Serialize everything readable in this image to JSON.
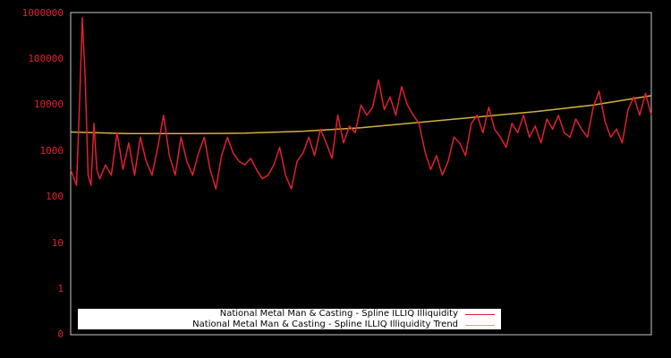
{
  "chart_data": {
    "type": "line",
    "title": "",
    "xlabel": "",
    "ylabel": "",
    "yscale": "log",
    "ylim": [
      0,
      1000000
    ],
    "y_ticks": [
      "1000000",
      "100000",
      "10000",
      "1000",
      "100",
      "10",
      "1",
      "0"
    ],
    "grid": false,
    "legend_position": "lower center",
    "colors": {
      "series": "#e02030",
      "trend": "#d4b040",
      "axis_labels": "#e02030",
      "background": "#000000",
      "frame": "#c8c8c8"
    },
    "series": [
      {
        "name": "National Metal Man & Casting - Spline ILLIQ Illiquidity",
        "color": "#e02030",
        "x_fraction": [
          0.0,
          0.01,
          0.015,
          0.02,
          0.025,
          0.03,
          0.035,
          0.04,
          0.045,
          0.05,
          0.06,
          0.07,
          0.08,
          0.09,
          0.1,
          0.11,
          0.12,
          0.13,
          0.14,
          0.15,
          0.16,
          0.17,
          0.18,
          0.19,
          0.2,
          0.21,
          0.22,
          0.23,
          0.24,
          0.25,
          0.26,
          0.27,
          0.28,
          0.29,
          0.3,
          0.31,
          0.32,
          0.33,
          0.34,
          0.35,
          0.36,
          0.37,
          0.38,
          0.39,
          0.4,
          0.41,
          0.42,
          0.43,
          0.44,
          0.45,
          0.46,
          0.47,
          0.48,
          0.49,
          0.5,
          0.51,
          0.52,
          0.53,
          0.54,
          0.55,
          0.56,
          0.57,
          0.58,
          0.59,
          0.6,
          0.61,
          0.62,
          0.63,
          0.64,
          0.65,
          0.66,
          0.67,
          0.68,
          0.69,
          0.7,
          0.71,
          0.72,
          0.73,
          0.74,
          0.75,
          0.76,
          0.77,
          0.78,
          0.79,
          0.8,
          0.81,
          0.82,
          0.83,
          0.84,
          0.85,
          0.86,
          0.87,
          0.88,
          0.89,
          0.9,
          0.91,
          0.92,
          0.93,
          0.94,
          0.95,
          0.96,
          0.97,
          0.98,
          0.99,
          1.0
        ],
        "values": [
          400,
          180,
          8000,
          800000,
          40000,
          300,
          180,
          4000,
          400,
          250,
          500,
          300,
          2500,
          400,
          1500,
          300,
          2000,
          600,
          300,
          1200,
          6000,
          800,
          300,
          2000,
          600,
          300,
          900,
          2000,
          400,
          150,
          800,
          2000,
          900,
          600,
          500,
          700,
          400,
          250,
          300,
          500,
          1200,
          300,
          150,
          600,
          900,
          2000,
          800,
          3000,
          1500,
          700,
          6000,
          1500,
          3500,
          2500,
          10000,
          6000,
          9000,
          35000,
          8000,
          15000,
          6000,
          25000,
          10000,
          6000,
          4000,
          1000,
          400,
          800,
          300,
          600,
          2000,
          1500,
          800,
          4000,
          6000,
          2500,
          9000,
          3000,
          2000,
          1200,
          4000,
          2500,
          6000,
          2000,
          3500,
          1500,
          5000,
          3000,
          6000,
          2500,
          2000,
          5000,
          3000,
          2000,
          9000,
          20000,
          4500,
          2000,
          3000,
          1500,
          8000,
          15000,
          6000,
          18000,
          6000
        ]
      },
      {
        "name": "National Metal Man & Casting - Spline ILLIQ Illiquidity Trend",
        "color": "#d4b040",
        "x_fraction": [
          0.0,
          0.1,
          0.2,
          0.3,
          0.4,
          0.5,
          0.6,
          0.7,
          0.8,
          0.9,
          1.0
        ],
        "values": [
          2600,
          2400,
          2400,
          2450,
          2700,
          3200,
          4200,
          5500,
          7200,
          10000,
          16000
        ]
      }
    ]
  },
  "legend": {
    "items": [
      {
        "label": "National Metal Man & Casting - Spline ILLIQ Illiquidity",
        "color": "#e02030"
      },
      {
        "label": "National Metal Man & Casting - Spline ILLIQ Illiquidity Trend",
        "color": "#d4b040"
      }
    ]
  }
}
